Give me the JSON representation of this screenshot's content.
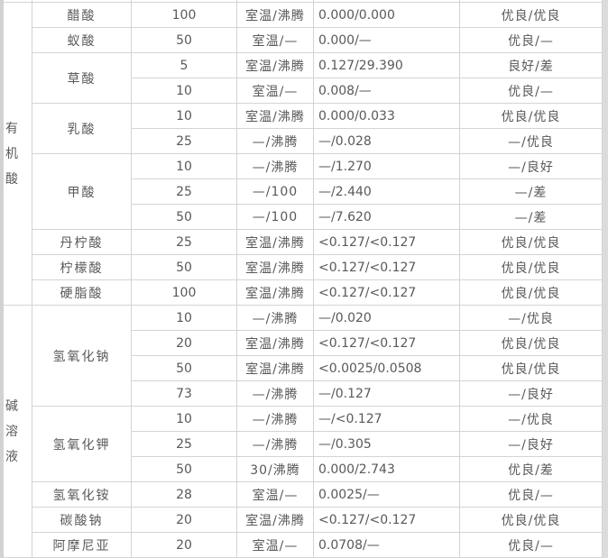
{
  "page": {
    "background": "#ffffff",
    "left_edge_color": "#d2d2d2",
    "right_edge_color": "#dcdcdc",
    "border_color": "#d4d4d4",
    "text_color": "#595959"
  },
  "table": {
    "sections": [
      {
        "category": "有机酸",
        "chemicals": [
          {
            "name": "醋酸",
            "rows": [
              [
                "100",
                "室温/沸腾",
                "0.000/0.000",
                "优良/优良"
              ]
            ]
          },
          {
            "name": "蚁酸",
            "rows": [
              [
                "50",
                "室温/—",
                "0.000/—",
                "优良/—"
              ]
            ]
          },
          {
            "name": "草酸",
            "rows": [
              [
                "5",
                "室温/沸腾",
                "0.127/29.390",
                "良好/差"
              ],
              [
                "10",
                "室温/—",
                "0.008/—",
                "优良/—"
              ]
            ]
          },
          {
            "name": "乳酸",
            "rows": [
              [
                "10",
                "室温/沸腾",
                "0.000/0.033",
                "优良/优良"
              ],
              [
                "25",
                "—/沸腾",
                "—/0.028",
                "—/优良"
              ]
            ]
          },
          {
            "name": "甲酸",
            "rows": [
              [
                "10",
                "—/沸腾",
                "—/1.270",
                "—/良好"
              ],
              [
                "25",
                "—/100",
                "—/2.440",
                "—/差"
              ],
              [
                "50",
                "—/100",
                "—/7.620",
                "—/差"
              ]
            ]
          },
          {
            "name": "丹柠酸",
            "rows": [
              [
                "25",
                "室温/沸腾",
                "<0.127/<0.127",
                "优良/优良"
              ]
            ]
          },
          {
            "name": "柠檬酸",
            "rows": [
              [
                "50",
                "室温/沸腾",
                "<0.127/<0.127",
                "优良/优良"
              ]
            ]
          },
          {
            "name": "硬脂酸",
            "rows": [
              [
                "100",
                "室温/沸腾",
                "<0.127/<0.127",
                "优良/优良"
              ]
            ]
          }
        ]
      },
      {
        "category": "碱溶液",
        "chemicals": [
          {
            "name": "氢氧化钠",
            "rows": [
              [
                "10",
                "—/沸腾",
                "—/0.020",
                "—/优良"
              ],
              [
                "20",
                "室温/沸腾",
                "<0.127/<0.127",
                "优良/优良"
              ],
              [
                "50",
                "室温/沸腾",
                "<0.0025/0.0508",
                "优良/优良"
              ],
              [
                "73",
                "—/沸腾",
                "—/0.127",
                "—/良好"
              ]
            ]
          },
          {
            "name": "氢氧化钾",
            "rows": [
              [
                "10",
                "—/沸腾",
                "—/<0.127",
                "—/优良"
              ],
              [
                "25",
                "—/沸腾",
                "—/0.305",
                "—/良好"
              ],
              [
                "50",
                "30/沸腾",
                "0.000/2.743",
                "优良/差"
              ]
            ]
          },
          {
            "name": "氢氧化铵",
            "rows": [
              [
                "28",
                "室温/—",
                "0.0025/—",
                "优良/—"
              ]
            ]
          },
          {
            "name": "碳酸钠",
            "rows": [
              [
                "20",
                "室温/沸腾",
                "<0.127/<0.127",
                "优良/优良"
              ]
            ]
          },
          {
            "name": "阿摩尼亚",
            "rows": [
              [
                "20",
                "室温/—",
                "0.0708/—",
                "优良/—"
              ]
            ]
          }
        ]
      }
    ]
  }
}
